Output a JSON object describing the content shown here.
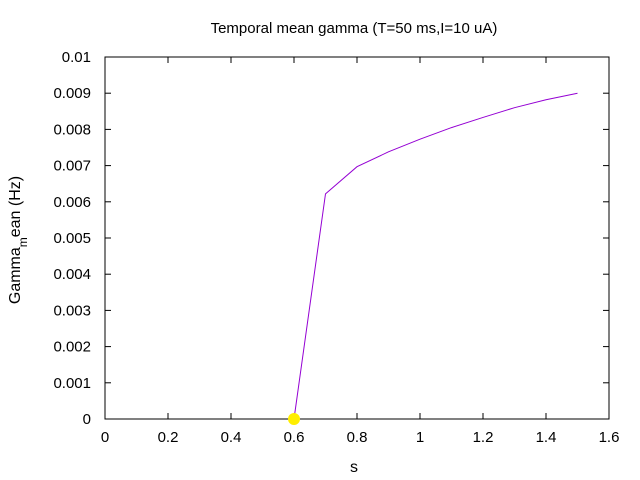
{
  "chart_data": {
    "type": "line",
    "title": "Temporal mean gamma (T=50 ms,I=10 uA)",
    "xlabel": "s",
    "ylabel_main": "Gamma",
    "ylabel_sub": "m",
    "ylabel_rest": "ean (Hz)",
    "xlim": [
      0,
      1.6
    ],
    "ylim": [
      0,
      0.01
    ],
    "x_ticks": [
      0,
      0.2,
      0.4,
      0.6,
      0.8,
      1.0,
      1.2,
      1.4,
      1.6
    ],
    "x_tick_labels": [
      "0",
      "0.2",
      "0.4",
      "0.6",
      "0.8",
      "1",
      "1.2",
      "1.4",
      "1.6"
    ],
    "y_ticks": [
      0,
      0.001,
      0.002,
      0.003,
      0.004,
      0.005,
      0.006,
      0.007,
      0.008,
      0.009,
      0.01
    ],
    "y_tick_labels": [
      "0",
      "0.001",
      "0.002",
      "0.003",
      "0.004",
      "0.005",
      "0.006",
      "0.007",
      "0.008",
      "0.009",
      "0.01"
    ],
    "grid": false,
    "series": [
      {
        "color": "#9400d3",
        "x": [
          0.6,
          0.7,
          0.8,
          0.9,
          1.0,
          1.1,
          1.2,
          1.3,
          1.4,
          1.5
        ],
        "y": [
          0.0,
          0.00622,
          0.00697,
          0.00738,
          0.00773,
          0.00805,
          0.00833,
          0.0086,
          0.00882,
          0.009
        ]
      }
    ],
    "highlight_point": {
      "x": 0.6,
      "y": 0.0,
      "color": "#ffee00"
    }
  }
}
